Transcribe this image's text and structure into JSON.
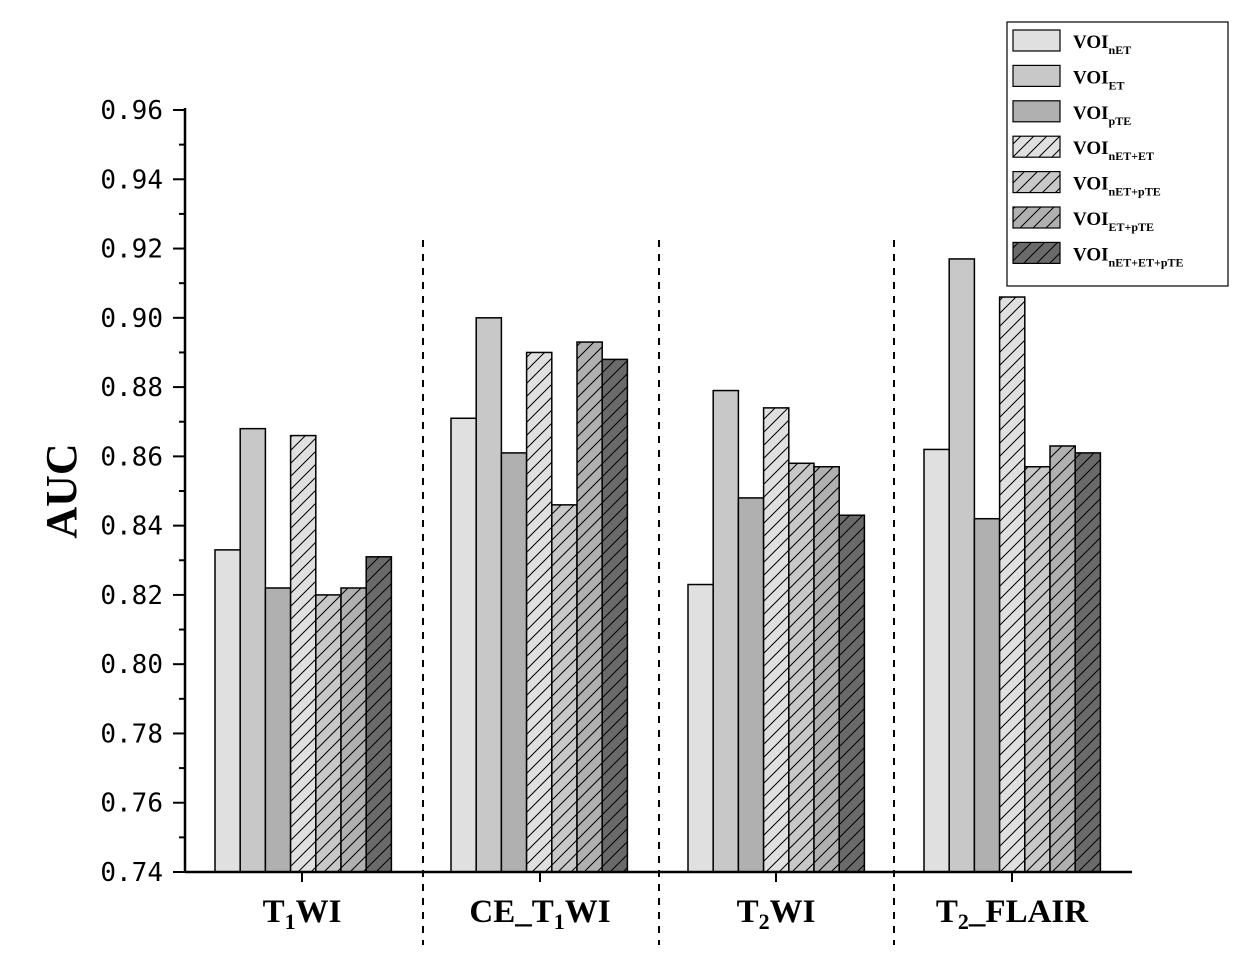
{
  "chart_data": {
    "type": "bar",
    "ylabel": "AUC",
    "ylim": [
      0.74,
      0.96
    ],
    "ytick_step": 0.02,
    "y_ticks": [
      "0.74",
      "0.76",
      "0.78",
      "0.80",
      "0.82",
      "0.84",
      "0.86",
      "0.88",
      "0.90",
      "0.92",
      "0.94",
      "0.96"
    ],
    "categories": [
      {
        "main": "T",
        "sub": "1",
        "rest": "WI"
      },
      {
        "main": "CE_T",
        "sub": "1",
        "rest": "WI"
      },
      {
        "main": "T",
        "sub": "2",
        "rest": "WI"
      },
      {
        "main": "T",
        "sub": "2",
        "rest": "_FLAIR"
      }
    ],
    "series": [
      {
        "name": "VOI",
        "sub": "nET",
        "color": "#e0e0e0",
        "hatch": false,
        "values": [
          0.833,
          0.871,
          0.823,
          0.862
        ]
      },
      {
        "name": "VOI",
        "sub": "ET",
        "color": "#c8c8c8",
        "hatch": false,
        "values": [
          0.868,
          0.9,
          0.879,
          0.917
        ]
      },
      {
        "name": "VOI",
        "sub": "pTE",
        "color": "#b0b0b0",
        "hatch": false,
        "values": [
          0.822,
          0.861,
          0.848,
          0.842
        ]
      },
      {
        "name": "VOI",
        "sub": "nET+ET",
        "color": "#e0e0e0",
        "hatch": true,
        "values": [
          0.866,
          0.89,
          0.874,
          0.906
        ]
      },
      {
        "name": "VOI",
        "sub": "nET+pTE",
        "color": "#c8c8c8",
        "hatch": true,
        "values": [
          0.82,
          0.846,
          0.858,
          0.857
        ]
      },
      {
        "name": "VOI",
        "sub": "ET+pTE",
        "color": "#b0b0b0",
        "hatch": true,
        "values": [
          0.822,
          0.893,
          0.857,
          0.863
        ]
      },
      {
        "name": "VOI",
        "sub": "nET+ET+pTE",
        "color": "#6a6a6a",
        "hatch": true,
        "values": [
          0.831,
          0.888,
          0.843,
          0.861
        ]
      }
    ],
    "legend_position": "top-right"
  }
}
